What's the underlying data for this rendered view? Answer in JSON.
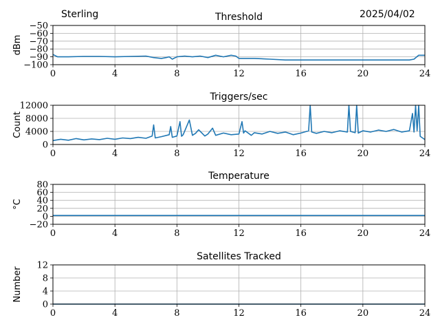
{
  "header": {
    "station": "Sterling",
    "date": "2025/04/02"
  },
  "colors": {
    "series": "#1f77b4",
    "grid": "#b0b0b0",
    "axis": "#000000",
    "background": "#ffffff"
  },
  "chart_data": [
    {
      "type": "line",
      "title": "Threshold",
      "xlabel": "",
      "ylabel": "dBm",
      "xlim": [
        0,
        24
      ],
      "ylim": [
        -100,
        -50
      ],
      "xticks": [
        0,
        4,
        8,
        12,
        16,
        20,
        24
      ],
      "yticks": [
        -100,
        -90,
        -80,
        -70,
        -60,
        -50
      ],
      "ytick_labels": [
        "−100",
        "−90",
        "−80",
        "−70",
        "−60",
        "−50"
      ],
      "grid": true,
      "series": [
        {
          "x": [
            0,
            0.3,
            1,
            2,
            3,
            4,
            5,
            6,
            6.5,
            7,
            7.3,
            7.5,
            7.7,
            8,
            8.5,
            9,
            9.5,
            10,
            10.5,
            11,
            11.5,
            11.8,
            12,
            13,
            14,
            15,
            16,
            17,
            18,
            19,
            20,
            21,
            22,
            23,
            23.3,
            23.6,
            24
          ],
          "y": [
            -87,
            -90,
            -90,
            -89.5,
            -89.5,
            -90,
            -89.5,
            -89,
            -91,
            -92,
            -91,
            -90,
            -93,
            -90,
            -89,
            -90,
            -89,
            -91,
            -88,
            -90,
            -88,
            -89,
            -92,
            -92,
            -93,
            -94,
            -94,
            -94,
            -94,
            -94,
            -94,
            -94,
            -94,
            -94,
            -93,
            -88,
            -88
          ]
        }
      ]
    },
    {
      "type": "line",
      "title": "Triggers/sec",
      "xlabel": "",
      "ylabel": "Count",
      "xlim": [
        0,
        24
      ],
      "ylim": [
        0,
        12000
      ],
      "xticks": [
        0,
        4,
        8,
        12,
        16,
        20,
        24
      ],
      "yticks": [
        0,
        4000,
        8000,
        12000
      ],
      "ytick_labels": [
        "0",
        "4000",
        "8000",
        "12000"
      ],
      "grid": true,
      "series": [
        {
          "x": [
            0,
            0.5,
            1,
            1.5,
            2,
            2.5,
            3,
            3.5,
            4,
            4.5,
            5,
            5.5,
            6,
            6.4,
            6.5,
            6.6,
            7,
            7.5,
            7.6,
            7.7,
            8,
            8.2,
            8.3,
            8.4,
            8.8,
            9,
            9.2,
            9.4,
            9.8,
            10,
            10.3,
            10.5,
            11,
            11.5,
            12,
            12.2,
            12.3,
            12.4,
            12.8,
            13,
            13.5,
            14,
            14.5,
            15,
            15.5,
            16,
            16.5,
            16.6,
            16.7,
            17,
            17.5,
            18,
            18.5,
            19,
            19.1,
            19.2,
            19.5,
            19.6,
            19.7,
            20,
            20.5,
            21,
            21.5,
            22,
            22.5,
            23,
            23.2,
            23.3,
            23.4,
            23.5,
            23.6,
            23.7,
            24
          ],
          "y": [
            1200,
            1600,
            1300,
            1800,
            1400,
            1700,
            1500,
            1900,
            1600,
            2000,
            1800,
            2200,
            1900,
            2600,
            6000,
            2000,
            2400,
            3000,
            5500,
            2200,
            2600,
            7000,
            2500,
            3000,
            7500,
            2800,
            3400,
            4500,
            2600,
            3200,
            5000,
            2800,
            3500,
            3000,
            3200,
            7000,
            3500,
            4200,
            2800,
            3600,
            3200,
            4000,
            3400,
            3800,
            3000,
            3500,
            4200,
            12000,
            3800,
            3400,
            4000,
            3600,
            4200,
            3800,
            12000,
            4000,
            3600,
            12000,
            3500,
            4200,
            3800,
            4400,
            4000,
            4600,
            3800,
            4200,
            9500,
            3800,
            12000,
            4200,
            12000,
            2500,
            1500
          ]
        }
      ]
    },
    {
      "type": "line",
      "title": "Temperature",
      "xlabel": "",
      "ylabel": "°C",
      "xlim": [
        0,
        24
      ],
      "ylim": [
        -20,
        80
      ],
      "xticks": [
        0,
        4,
        8,
        12,
        16,
        20,
        24
      ],
      "yticks": [
        -20,
        0,
        20,
        40,
        60,
        80
      ],
      "ytick_labels": [
        "−20",
        "0",
        "20",
        "40",
        "60",
        "80"
      ],
      "grid": true,
      "series": [
        {
          "x": [
            0,
            24
          ],
          "y": [
            2,
            2
          ]
        }
      ]
    },
    {
      "type": "line",
      "title": "Satellites Tracked",
      "xlabel": "",
      "ylabel": "Number",
      "xlim": [
        0,
        24
      ],
      "ylim": [
        0,
        12
      ],
      "xticks": [
        0,
        4,
        8,
        12,
        16,
        20,
        24
      ],
      "yticks": [
        0,
        4,
        8,
        12
      ],
      "ytick_labels": [
        "0",
        "4",
        "8",
        "12"
      ],
      "grid": true,
      "series": [
        {
          "x": [
            0,
            24
          ],
          "y": [
            0,
            0
          ]
        }
      ]
    }
  ]
}
